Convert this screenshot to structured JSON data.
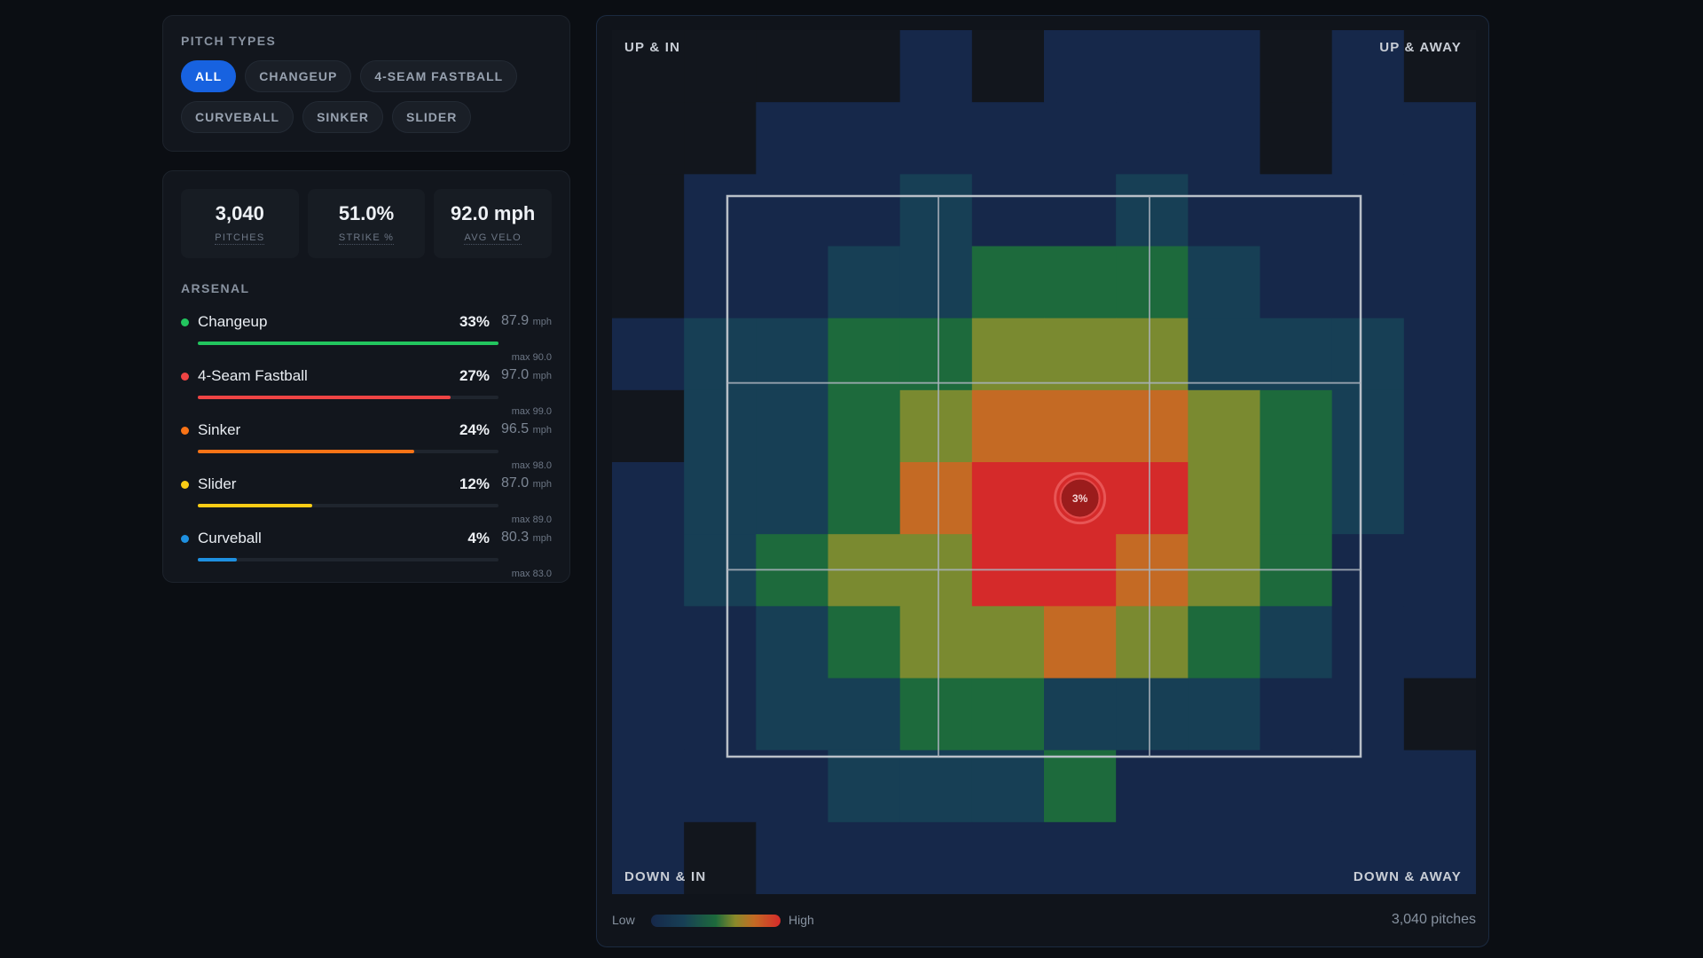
{
  "pitch_types": {
    "label": "PITCH TYPES",
    "chips": [
      {
        "label": "ALL",
        "active": true
      },
      {
        "label": "CHANGEUP",
        "active": false
      },
      {
        "label": "4-SEAM FASTBALL",
        "active": false
      },
      {
        "label": "CURVEBALL",
        "active": false
      },
      {
        "label": "SINKER",
        "active": false
      },
      {
        "label": "SLIDER",
        "active": false
      }
    ]
  },
  "stats": [
    {
      "value": "3,040",
      "label": "PITCHES"
    },
    {
      "value": "51.0%",
      "label": "STRIKE %"
    },
    {
      "value": "92.0 mph",
      "label": "AVG VELO"
    }
  ],
  "arsenal": {
    "label": "ARSENAL",
    "items": [
      {
        "name": "Changeup",
        "pct": "33%",
        "share": 1.0,
        "velo": "87.9",
        "unit": "mph",
        "max": "max 90.0",
        "color": "#22c55e"
      },
      {
        "name": "4-Seam Fastball",
        "pct": "27%",
        "share": 0.84,
        "velo": "97.0",
        "unit": "mph",
        "max": "max 99.0",
        "color": "#ef4444"
      },
      {
        "name": "Sinker",
        "pct": "24%",
        "share": 0.72,
        "velo": "96.5",
        "unit": "mph",
        "max": "max 98.0",
        "color": "#f97316"
      },
      {
        "name": "Slider",
        "pct": "12%",
        "share": 0.38,
        "velo": "87.0",
        "unit": "mph",
        "max": "max 89.0",
        "color": "#facc15"
      },
      {
        "name": "Curveball",
        "pct": "4%",
        "share": 0.13,
        "velo": "80.3",
        "unit": "mph",
        "max": "max 83.0",
        "color": "#1e90e0"
      }
    ]
  },
  "heatmap": {
    "corners": {
      "up_in": "UP & IN",
      "up_away": "UP & AWAY",
      "down_in": "DOWN & IN",
      "down_away": "DOWN & AWAY"
    },
    "highlight_label": "3%",
    "legend_low": "Low",
    "legend_high": "High",
    "total": "3,040 pitches"
  },
  "chart_data": {
    "type": "heatmap",
    "rows": 12,
    "cols": 12,
    "scale": [
      "#12161d",
      "#16284a",
      "#173f55",
      "#1d6a3c",
      "#7a8a30",
      "#c46a24",
      "#d52a2a"
    ],
    "values": [
      [
        0,
        0,
        0,
        0,
        1,
        0,
        1,
        1,
        1,
        0,
        1,
        0
      ],
      [
        0,
        0,
        1,
        1,
        1,
        1,
        1,
        1,
        1,
        0,
        1,
        1
      ],
      [
        0,
        1,
        1,
        1,
        2,
        1,
        1,
        2,
        1,
        1,
        1,
        1
      ],
      [
        0,
        1,
        1,
        2,
        2,
        3,
        3,
        3,
        2,
        1,
        1,
        1
      ],
      [
        1,
        2,
        2,
        3,
        3,
        4,
        4,
        4,
        2,
        2,
        2,
        1
      ],
      [
        0,
        2,
        2,
        3,
        4,
        5,
        5,
        5,
        4,
        3,
        2,
        1
      ],
      [
        1,
        2,
        2,
        3,
        5,
        6,
        6,
        6,
        4,
        3,
        2,
        1
      ],
      [
        1,
        2,
        3,
        4,
        4,
        6,
        6,
        5,
        4,
        3,
        1,
        1
      ],
      [
        1,
        1,
        2,
        3,
        4,
        4,
        5,
        4,
        3,
        2,
        1,
        1
      ],
      [
        1,
        1,
        2,
        2,
        3,
        3,
        2,
        2,
        2,
        1,
        1,
        0
      ],
      [
        1,
        1,
        1,
        2,
        2,
        2,
        3,
        1,
        1,
        1,
        1,
        1
      ],
      [
        1,
        0,
        1,
        1,
        1,
        1,
        1,
        1,
        1,
        1,
        1,
        1
      ]
    ],
    "highlight_cell": [
      6,
      6
    ]
  }
}
